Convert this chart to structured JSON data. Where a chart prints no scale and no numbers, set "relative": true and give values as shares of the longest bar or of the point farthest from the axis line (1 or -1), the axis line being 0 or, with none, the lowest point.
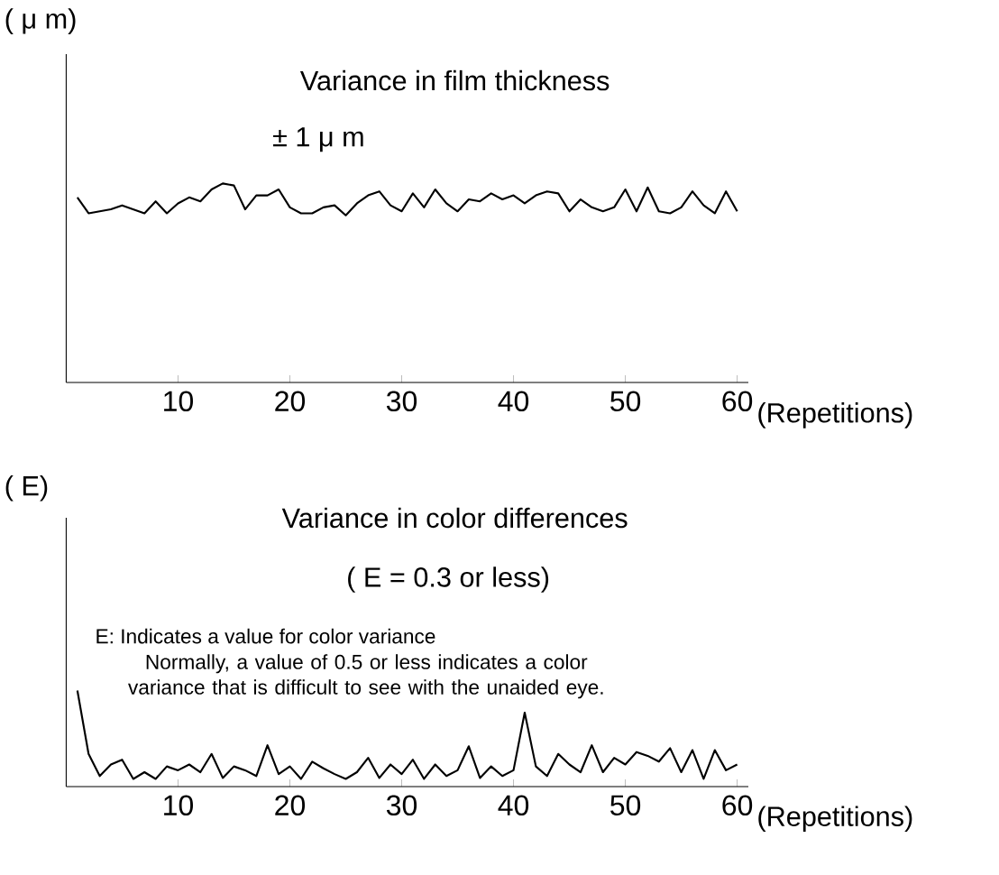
{
  "chart_data": [
    {
      "type": "line",
      "relative": true,
      "title": "Variance in film thickness",
      "subtitle": "± 1 μ m",
      "ylabel": "( μ m)",
      "xlabel": "(Repetitions)",
      "color": "#000000",
      "xlim": [
        0,
        61
      ],
      "xticks": [
        10,
        20,
        30,
        40,
        50,
        60
      ],
      "x": [
        1,
        2,
        3,
        4,
        5,
        6,
        7,
        8,
        9,
        10,
        11,
        12,
        13,
        14,
        15,
        16,
        17,
        18,
        19,
        20,
        21,
        22,
        23,
        24,
        25,
        26,
        27,
        28,
        29,
        30,
        31,
        32,
        33,
        34,
        35,
        36,
        37,
        38,
        39,
        40,
        41,
        42,
        43,
        44,
        45,
        46,
        47,
        48,
        49,
        50,
        51,
        52,
        53,
        54,
        55,
        56,
        57,
        58,
        59,
        60
      ],
      "values": [
        0.93,
        0.85,
        0.86,
        0.87,
        0.89,
        0.87,
        0.85,
        0.91,
        0.85,
        0.9,
        0.93,
        0.91,
        0.97,
        1.0,
        0.99,
        0.87,
        0.94,
        0.94,
        0.97,
        0.88,
        0.85,
        0.85,
        0.88,
        0.89,
        0.84,
        0.9,
        0.94,
        0.96,
        0.89,
        0.86,
        0.95,
        0.88,
        0.97,
        0.9,
        0.86,
        0.92,
        0.91,
        0.95,
        0.92,
        0.94,
        0.9,
        0.94,
        0.96,
        0.95,
        0.86,
        0.92,
        0.88,
        0.86,
        0.88,
        0.97,
        0.86,
        0.98,
        0.86,
        0.85,
        0.88,
        0.96,
        0.89,
        0.85,
        0.96,
        0.86
      ]
    },
    {
      "type": "line",
      "relative": true,
      "title": "Variance in color differences",
      "subtitle": "(  E = 0.3 or less)",
      "ylabel": "(  E)",
      "xlabel": "(Repetitions)",
      "color": "#000000",
      "xlim": [
        0,
        61
      ],
      "xticks": [
        10,
        20,
        30,
        40,
        50,
        60
      ],
      "annotations": [
        "E: Indicates a value for color variance",
        "Normally, a value of 0.5 or less indicates a color variance that is difficult to see with the unaided eye."
      ],
      "x": [
        1,
        2,
        3,
        4,
        5,
        6,
        7,
        8,
        9,
        10,
        11,
        12,
        13,
        14,
        15,
        16,
        17,
        18,
        19,
        20,
        21,
        22,
        23,
        24,
        25,
        26,
        27,
        28,
        29,
        30,
        31,
        32,
        33,
        34,
        35,
        36,
        37,
        38,
        39,
        40,
        41,
        42,
        43,
        44,
        45,
        46,
        47,
        48,
        49,
        50,
        51,
        52,
        53,
        54,
        55,
        56,
        57,
        58,
        59,
        60
      ],
      "values": [
        1.0,
        0.34,
        0.11,
        0.23,
        0.28,
        0.08,
        0.15,
        0.08,
        0.21,
        0.17,
        0.23,
        0.15,
        0.34,
        0.09,
        0.21,
        0.17,
        0.11,
        0.43,
        0.13,
        0.21,
        0.08,
        0.26,
        0.19,
        0.13,
        0.08,
        0.15,
        0.3,
        0.09,
        0.23,
        0.13,
        0.28,
        0.08,
        0.23,
        0.11,
        0.17,
        0.42,
        0.09,
        0.21,
        0.11,
        0.17,
        0.77,
        0.21,
        0.11,
        0.34,
        0.23,
        0.15,
        0.43,
        0.15,
        0.3,
        0.23,
        0.36,
        0.32,
        0.26,
        0.4,
        0.15,
        0.38,
        0.08,
        0.38,
        0.17,
        0.23
      ]
    }
  ]
}
